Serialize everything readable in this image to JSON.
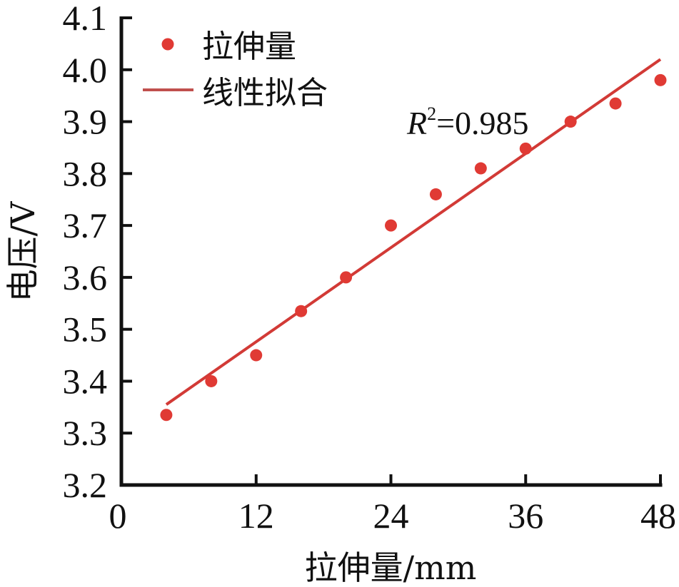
{
  "chart_data": {
    "type": "scatter",
    "title": "",
    "xlabel": "拉伸量/mm",
    "ylabel": "电压/V",
    "xlim": [
      0,
      48
    ],
    "ylim": [
      3.2,
      4.1
    ],
    "xticks": [
      0,
      12,
      24,
      36,
      48
    ],
    "xtick_labels": [
      "0",
      "12",
      "24",
      "36",
      "48"
    ],
    "yticks": [
      3.2,
      3.3,
      3.4,
      3.5,
      3.6,
      3.7,
      3.8,
      3.9,
      4.0,
      4.1
    ],
    "ytick_labels": [
      "3.2",
      "3.3",
      "3.4",
      "3.5",
      "3.6",
      "3.7",
      "3.8",
      "3.9",
      "4.0",
      "4.1"
    ],
    "grid": false,
    "legend_position": "upper left",
    "series": [
      {
        "name": "拉伸量",
        "kind": "scatter",
        "color": "#e03a34",
        "x": [
          4,
          8,
          12,
          16,
          20,
          24,
          28,
          32,
          36,
          40,
          44,
          48
        ],
        "y": [
          3.335,
          3.4,
          3.45,
          3.535,
          3.6,
          3.7,
          3.76,
          3.81,
          3.848,
          3.9,
          3.935,
          3.98
        ]
      },
      {
        "name": "线性拟合",
        "kind": "line",
        "color": "#d23a36",
        "x": [
          4,
          48
        ],
        "y": [
          3.355,
          4.02
        ]
      }
    ],
    "annotations": [
      {
        "text_main": "R",
        "text_sup": "2",
        "text_rest": "=0.985",
        "x": 24.5,
        "y": 3.93
      }
    ]
  },
  "legend": {
    "items": [
      {
        "label": "拉伸量",
        "marker": "dot-marker",
        "color": "#e03a34"
      },
      {
        "label": "线性拟合",
        "marker": "line-marker",
        "color": "#c0504d"
      }
    ]
  }
}
